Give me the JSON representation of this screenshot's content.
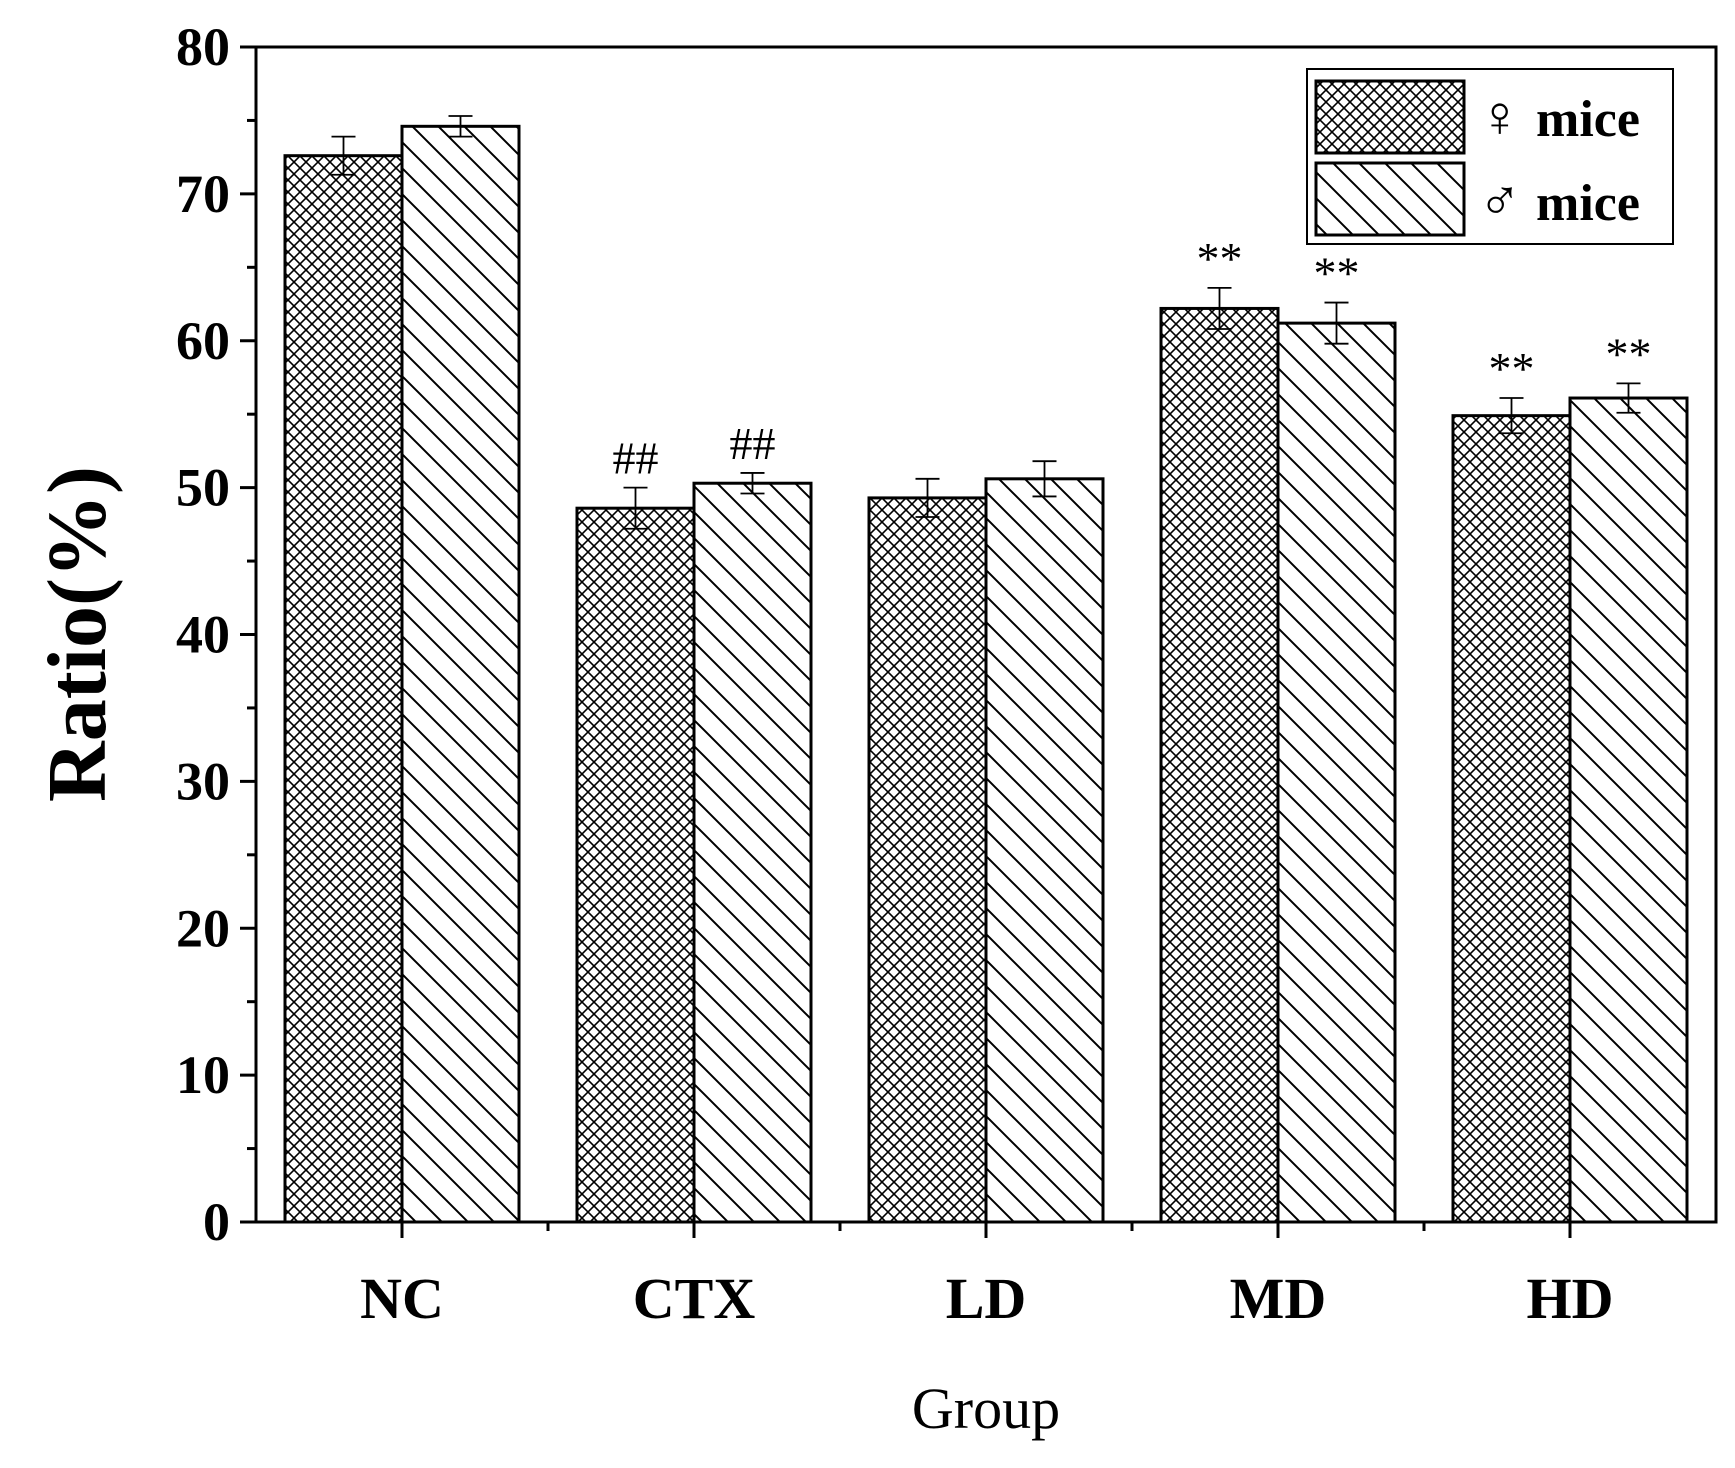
{
  "chart_data": {
    "type": "bar",
    "title": "",
    "xlabel": "Group",
    "ylabel": "Ratio(%)",
    "ylim": [
      0,
      80
    ],
    "yticks": [
      0,
      10,
      20,
      30,
      40,
      50,
      60,
      70,
      80
    ],
    "categories": [
      "NC",
      "CTX",
      "LD",
      "MD",
      "HD"
    ],
    "series": [
      {
        "name": "♀mice",
        "symbol": "♀",
        "label": "mice",
        "pattern": "crosshatch",
        "values": [
          72.6,
          48.6,
          49.3,
          62.2,
          54.9
        ],
        "errors": [
          1.3,
          1.4,
          1.3,
          1.4,
          1.2
        ],
        "annotations": [
          "",
          "##",
          "",
          "**",
          "**"
        ]
      },
      {
        "name": "♂mice",
        "symbol": "♂",
        "label": "mice",
        "pattern": "diagonal",
        "values": [
          74.6,
          50.3,
          50.6,
          61.2,
          56.1
        ],
        "errors": [
          0.7,
          0.7,
          1.2,
          1.4,
          1.0
        ],
        "annotations": [
          "",
          "##",
          "",
          "**",
          "**"
        ]
      }
    ],
    "legend_position": "top-right",
    "grid": false
  }
}
